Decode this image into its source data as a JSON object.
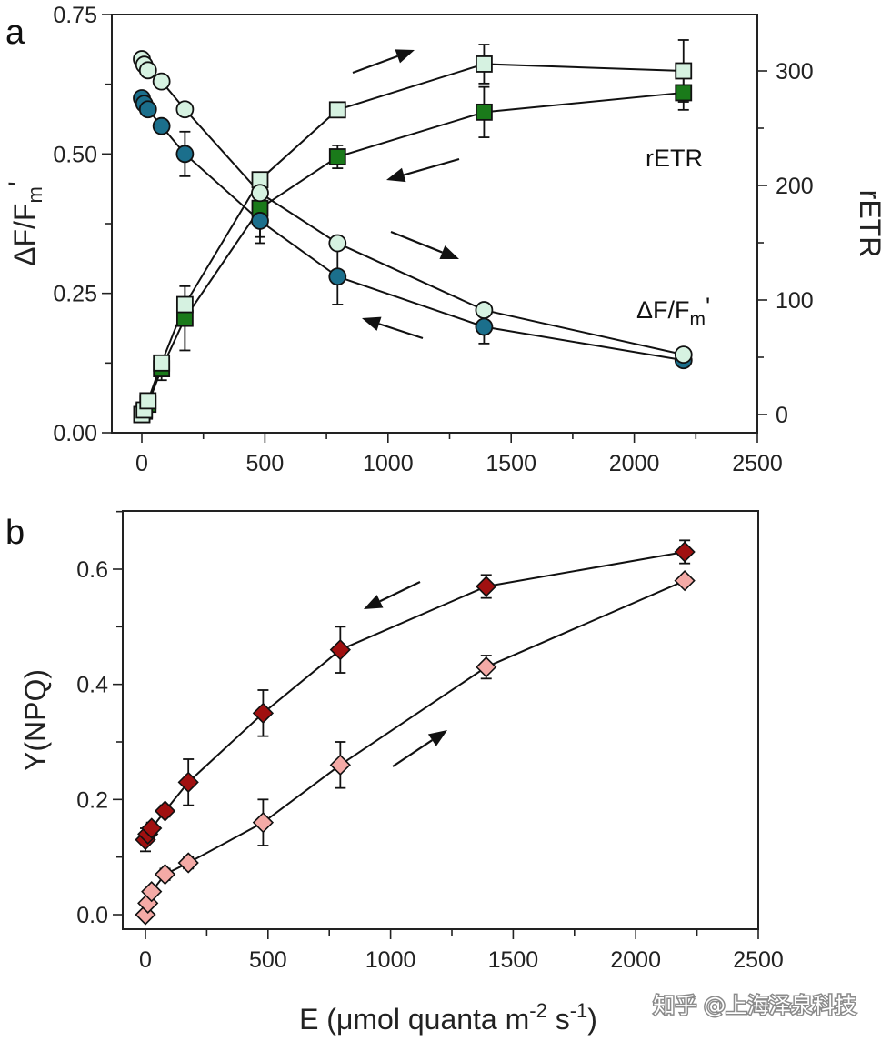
{
  "chart_data": [
    {
      "panel": "a",
      "type": "line",
      "x_axis": {
        "range": [
          -80,
          2500
        ],
        "ticks": [
          0,
          500,
          1000,
          1500,
          2000,
          2500
        ],
        "minor_step": 250
      },
      "y_left": {
        "label": "ΔF/Fm'",
        "range": [
          0.0,
          0.75
        ],
        "ticks": [
          0.0,
          0.25,
          0.5,
          0.75
        ],
        "tick_labels": [
          "0.00",
          "0.25",
          "0.50",
          "0.75"
        ],
        "minor_step": 0.125
      },
      "y_right": {
        "label": "rETR",
        "range": [
          -15,
          340
        ],
        "ticks": [
          0,
          100,
          200,
          300
        ],
        "minor_step": 50
      },
      "x": [
        0,
        10,
        25,
        80,
        175,
        480,
        795,
        1390,
        2200
      ],
      "series": [
        {
          "name": "ΔF/Fm' increasing E",
          "axis": "left",
          "marker": "circle",
          "fill": "#d6f2e1",
          "values": [
            0.67,
            0.66,
            0.65,
            0.63,
            0.58,
            0.43,
            0.34,
            0.22,
            0.14
          ],
          "err": [
            0,
            0,
            0,
            0,
            0,
            0,
            0,
            0,
            0
          ]
        },
        {
          "name": "ΔF/Fm' decreasing E",
          "axis": "left",
          "marker": "circle",
          "fill": "#1b6f8c",
          "values": [
            0.6,
            0.59,
            0.58,
            0.55,
            0.5,
            0.38,
            0.28,
            0.19,
            0.13
          ],
          "err": [
            0,
            0,
            0,
            0,
            0.04,
            0.04,
            0.05,
            0.03,
            0
          ]
        },
        {
          "name": "rETR increasing E",
          "axis": "right",
          "marker": "square",
          "fill": "#d6f2e1",
          "values": [
            0,
            4,
            12,
            45,
            96,
            205,
            266,
            306,
            300
          ],
          "err": [
            0,
            0,
            0,
            0,
            0,
            0,
            0,
            17,
            27
          ]
        },
        {
          "name": "rETR decreasing E",
          "axis": "right",
          "marker": "square",
          "fill": "#1a7a1a",
          "values": [
            0,
            3,
            9,
            40,
            84,
            180,
            225,
            264,
            281
          ],
          "err": [
            0,
            0,
            0,
            10,
            28,
            25,
            10,
            22,
            15
          ]
        }
      ],
      "annotations": [
        {
          "text": "rETR",
          "near": "upper series, right"
        },
        {
          "text": "ΔF/F",
          "sub": "m",
          "sup": "'",
          "near": "lower series, right"
        }
      ],
      "arrows": [
        "right",
        "left",
        "right",
        "left"
      ]
    },
    {
      "panel": "b",
      "type": "line",
      "x_axis": {
        "label": "E (μmol quanta m",
        "label_sup1": "-2",
        "label_mid": " s",
        "label_sup2": "-1",
        "label_end": ")",
        "range": [
          -80,
          2500
        ],
        "ticks": [
          0,
          500,
          1000,
          1500,
          2000,
          2500
        ],
        "minor_step": 250
      },
      "y_left": {
        "label": "Y(NPQ)",
        "range": [
          -0.03,
          0.7
        ],
        "ticks": [
          0.0,
          0.2,
          0.4,
          0.6
        ],
        "tick_labels": [
          "0.0",
          "0.2",
          "0.4",
          "0.6"
        ],
        "minor_step": 0.1
      },
      "x": [
        0,
        10,
        25,
        80,
        175,
        480,
        795,
        1390,
        2200
      ],
      "series": [
        {
          "name": "Y(NPQ) increasing E",
          "marker": "diamond",
          "fill": "#f4aaa6",
          "values": [
            0.0,
            0.02,
            0.04,
            0.07,
            0.09,
            0.16,
            0.26,
            0.43,
            0.58
          ],
          "err": [
            0,
            0,
            0,
            0.01,
            0.01,
            0.04,
            0.04,
            0.02,
            0
          ]
        },
        {
          "name": "Y(NPQ) decreasing E",
          "marker": "diamond",
          "fill": "#a01010",
          "values": [
            0.13,
            0.14,
            0.15,
            0.18,
            0.23,
            0.35,
            0.46,
            0.57,
            0.63
          ],
          "err": [
            0.02,
            0,
            0.01,
            0.01,
            0.04,
            0.04,
            0.04,
            0.02,
            0.02
          ]
        }
      ],
      "arrows": [
        "left",
        "right"
      ]
    }
  ],
  "labels": {
    "panel_a": "a",
    "panel_b": "b"
  },
  "watermark": "知乎 @上海泽泉科技"
}
